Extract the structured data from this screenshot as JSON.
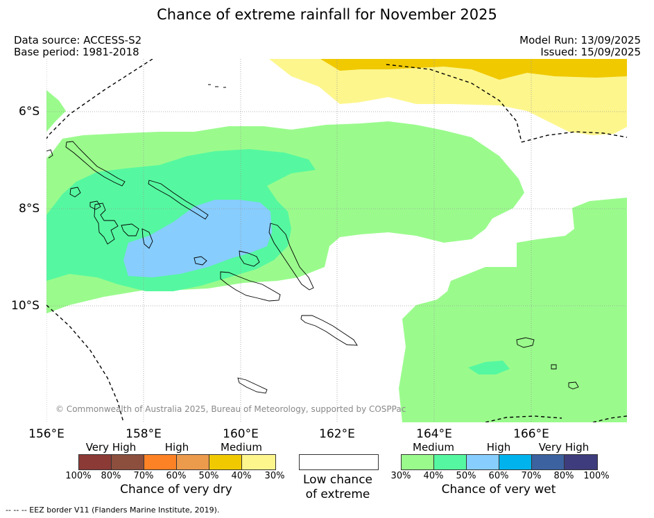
{
  "title": "Chance of extreme rainfall for November 2025",
  "meta": {
    "data_source": "Data source: ACCESS-S2",
    "base_period": "Base period: 1981-2018",
    "model_run": "Model Run: 13/09/2025",
    "issued": "Issued: 15/09/2025"
  },
  "map": {
    "lat_labels": [
      "6°S",
      "8°S",
      "10°S"
    ],
    "lon_labels": [
      "156°E",
      "158°E",
      "160°E",
      "162°E",
      "164°E",
      "166°E"
    ],
    "copyright": "© Commonwealth of Australia 2025, Bureau of Meteorology, supported by COSPPac",
    "eez_note": "--  --  -- EEZ border V11 (Flanders Marine Institute, 2019)."
  },
  "legend": {
    "dry": {
      "heads": [
        "Very High",
        "High",
        "Medium"
      ],
      "ticks": [
        "100%",
        "80%",
        "70%",
        "60%",
        "50%",
        "40%",
        "30%"
      ],
      "colors": [
        "#8b3a36",
        "#8c4f3e",
        "#fd8125",
        "#ec9a4c",
        "#f0c900",
        "#fdf68d"
      ],
      "title": "Chance of very dry"
    },
    "low": {
      "title_line1": "Low chance",
      "title_line2": "of extreme",
      "color": "#ffffff"
    },
    "wet": {
      "heads": [
        "Medium",
        "High",
        "Very High"
      ],
      "ticks": [
        "30%",
        "40%",
        "50%",
        "60%",
        "70%",
        "80%",
        "100%"
      ],
      "colors": [
        "#9afb8c",
        "#55f8a0",
        "#87cdfd",
        "#00b3ec",
        "#3c62a0",
        "#3e3c7c"
      ],
      "title": "Chance of very wet"
    }
  }
}
